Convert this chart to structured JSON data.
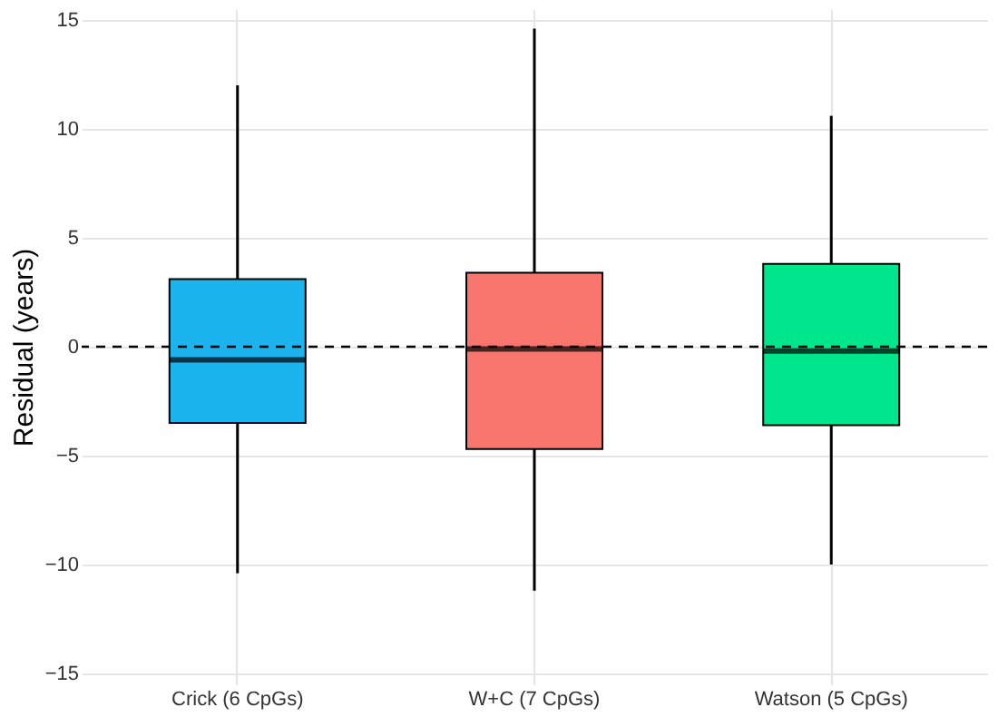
{
  "chart_data": {
    "type": "box",
    "ylabel": "Residual (years)",
    "categories": [
      "Crick (6 CpGs)",
      "W+C (7 CpGs)",
      "Watson (5 CpGs)"
    ],
    "boxes": [
      {
        "low": -10.4,
        "q1": -3.5,
        "median": -0.6,
        "q3": 3.1,
        "high": 12
      },
      {
        "low": -11.2,
        "q1": -4.7,
        "median": -0.1,
        "q3": 3.4,
        "high": 14.6
      },
      {
        "low": -10,
        "q1": -3.6,
        "median": -0.2,
        "q3": 3.8,
        "high": 10.6
      }
    ],
    "colors": [
      "#1cb4ef",
      "#f8766d",
      "#00e68c"
    ],
    "ylim": [
      -15.5,
      15.5
    ],
    "yticks": [
      -15,
      -10,
      -5,
      0,
      5,
      10,
      15
    ],
    "grid": true,
    "ref_lines": [
      {
        "axis": "y",
        "value": 0,
        "color": "#000000",
        "line_style": "dashed"
      }
    ]
  }
}
